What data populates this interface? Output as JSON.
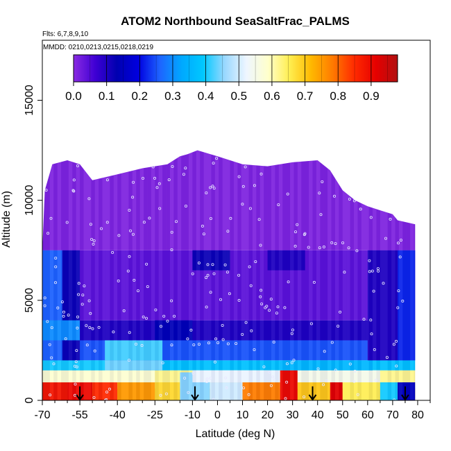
{
  "chart_data": {
    "type": "heatmap",
    "title": "ATOM2 Northbound SeaSaltFrac_PALMS",
    "subtitle_flights": "Flts: 6,7,8,9,10",
    "subtitle_dates": "MMDD: 0210,0213,0215,0218,0219",
    "xlabel": "Latitude (deg N)",
    "ylabel": "Altitude (m)",
    "xlim": [
      -70,
      85
    ],
    "ylim": [
      0,
      18000
    ],
    "x_ticks": [
      "-70",
      "-55",
      "-40",
      "-25",
      "-10",
      "0",
      "10",
      "20",
      "30",
      "40",
      "50",
      "60",
      "70",
      "80"
    ],
    "y_ticks": [
      "0",
      "5000",
      "10000",
      "15000"
    ],
    "x_tick_values": [
      -70,
      -55,
      -40,
      -25,
      -10,
      0,
      10,
      20,
      30,
      40,
      50,
      60,
      70,
      80
    ],
    "y_tick_values": [
      0,
      5000,
      10000,
      15000
    ],
    "minor_x_ticks": [
      -65,
      -60,
      -50,
      -45,
      -35,
      -30,
      -20,
      -15,
      -5,
      5,
      15,
      25,
      35,
      45,
      55,
      65,
      75,
      85
    ],
    "colorbar": {
      "range": [
        0,
        0.98
      ],
      "tick_labels": [
        "0.0",
        "0.1",
        "0.2",
        "0.3",
        "0.4",
        "0.5",
        "0.6",
        "0.7",
        "0.8",
        "0.9"
      ],
      "tick_values": [
        0,
        0.1,
        0.2,
        0.3,
        0.4,
        0.5,
        0.6,
        0.7,
        0.8,
        0.9
      ],
      "colors": [
        "#8a2be2",
        "#3f00d4",
        "#0000b0",
        "#0000e0",
        "#1e64ff",
        "#00a8ff",
        "#00c8ff",
        "#9ad8ff",
        "#eef6ff",
        "#ffffcc",
        "#ffee50",
        "#ffb800",
        "#ff7a00",
        "#ff2a00",
        "#e60000",
        "#b01010"
      ]
    },
    "ceiling": [
      [
        -70,
        7500
      ],
      [
        -69,
        10500
      ],
      [
        -66,
        11800
      ],
      [
        -60,
        12000
      ],
      [
        -55,
        11800
      ],
      [
        -50,
        11000
      ],
      [
        -40,
        11300
      ],
      [
        -30,
        11600
      ],
      [
        -20,
        11800
      ],
      [
        -15,
        12200
      ],
      [
        -12,
        12300
      ],
      [
        -8,
        12500
      ],
      [
        0,
        12200
      ],
      [
        10,
        11800
      ],
      [
        20,
        11700
      ],
      [
        30,
        11900
      ],
      [
        40,
        12000
      ],
      [
        45,
        11500
      ],
      [
        50,
        10500
      ],
      [
        55,
        10000
      ],
      [
        60,
        9700
      ],
      [
        65,
        9500
      ],
      [
        70,
        9300
      ],
      [
        72,
        9000
      ],
      [
        79,
        8800
      ]
    ],
    "fraction_by_altitude_band": [
      {
        "alt": [
          0,
          600
        ],
        "lat": [
          -70,
          79
        ],
        "value": 0.72
      },
      {
        "alt": [
          600,
          1500
        ],
        "lat": [
          -70,
          79
        ],
        "value": 0.62
      },
      {
        "alt": [
          1500,
          2000
        ],
        "lat": [
          -70,
          79
        ],
        "value": 0.38
      },
      {
        "alt": [
          2000,
          3000
        ],
        "lat": [
          -70,
          79
        ],
        "value": 0.25
      },
      {
        "alt": [
          3000,
          4000
        ],
        "lat": [
          -70,
          79
        ],
        "value": 0.1
      },
      {
        "alt": [
          4000,
          7500
        ],
        "lat": [
          -70,
          79
        ],
        "value": 0.04
      },
      {
        "alt": [
          7500,
          13000
        ],
        "lat": [
          -70,
          79
        ],
        "value": 0.01
      }
    ],
    "regions": [
      {
        "lat": [
          -70,
          -60
        ],
        "alt": [
          0,
          900
        ],
        "value": 0.88
      },
      {
        "lat": [
          -60,
          -50
        ],
        "alt": [
          0,
          900
        ],
        "value": 0.9
      },
      {
        "lat": [
          -50,
          -40
        ],
        "alt": [
          0,
          900
        ],
        "value": 0.85
      },
      {
        "lat": [
          -40,
          -25
        ],
        "alt": [
          0,
          900
        ],
        "value": 0.75
      },
      {
        "lat": [
          -25,
          -15
        ],
        "alt": [
          0,
          900
        ],
        "value": 0.68
      },
      {
        "lat": [
          -15,
          -3
        ],
        "alt": [
          0,
          1400
        ],
        "value": 0.45
      },
      {
        "lat": [
          -3,
          10
        ],
        "alt": [
          0,
          900
        ],
        "value": 0.5
      },
      {
        "lat": [
          10,
          25
        ],
        "alt": [
          0,
          900
        ],
        "value": 0.78
      },
      {
        "lat": [
          25,
          32
        ],
        "alt": [
          0,
          1500
        ],
        "value": 0.9
      },
      {
        "lat": [
          32,
          45
        ],
        "alt": [
          0,
          900
        ],
        "value": 0.7
      },
      {
        "lat": [
          45,
          50
        ],
        "alt": [
          0,
          1400
        ],
        "value": 0.92
      },
      {
        "lat": [
          50,
          65
        ],
        "alt": [
          0,
          900
        ],
        "value": 0.65
      },
      {
        "lat": [
          65,
          72
        ],
        "alt": [
          0,
          900
        ],
        "value": 0.4
      },
      {
        "lat": [
          72,
          79
        ],
        "alt": [
          0,
          900
        ],
        "value": 0.15
      },
      {
        "lat": [
          -70,
          -25
        ],
        "alt": [
          900,
          1500
        ],
        "value": 0.58
      },
      {
        "lat": [
          -10,
          25
        ],
        "alt": [
          900,
          1500
        ],
        "value": 0.52
      },
      {
        "lat": [
          32,
          65
        ],
        "alt": [
          900,
          1500
        ],
        "value": 0.55
      },
      {
        "lat": [
          -70,
          -45
        ],
        "alt": [
          1500,
          2000
        ],
        "value": 0.4
      },
      {
        "lat": [
          -45,
          -22
        ],
        "alt": [
          1500,
          2000
        ],
        "value": 0.44
      },
      {
        "lat": [
          25,
          62
        ],
        "alt": [
          1500,
          2000
        ],
        "value": 0.36
      },
      {
        "lat": [
          -70,
          -62
        ],
        "alt": [
          2000,
          7500
        ],
        "value": 0.26
      },
      {
        "lat": [
          -62,
          -55
        ],
        "alt": [
          2000,
          7500
        ],
        "value": 0.12
      },
      {
        "lat": [
          -45,
          -22
        ],
        "alt": [
          2000,
          3000
        ],
        "value": 0.42
      },
      {
        "lat": [
          60,
          72
        ],
        "alt": [
          2000,
          7500
        ],
        "value": 0.1
      },
      {
        "lat": [
          72,
          79
        ],
        "alt": [
          2000,
          7500
        ],
        "value": 0.22
      },
      {
        "lat": [
          -70,
          -55
        ],
        "alt": [
          3000,
          4000
        ],
        "value": 0.3
      },
      {
        "lat": [
          -25,
          -10
        ],
        "alt": [
          3000,
          4000
        ],
        "value": 0.14
      },
      {
        "lat": [
          -10,
          5
        ],
        "alt": [
          6500,
          7500
        ],
        "value": 0.12
      },
      {
        "lat": [
          20,
          35
        ],
        "alt": [
          6500,
          7500
        ],
        "value": 0.1
      }
    ],
    "profile_markers_lat": [
      -55,
      -9,
      38,
      75
    ]
  }
}
